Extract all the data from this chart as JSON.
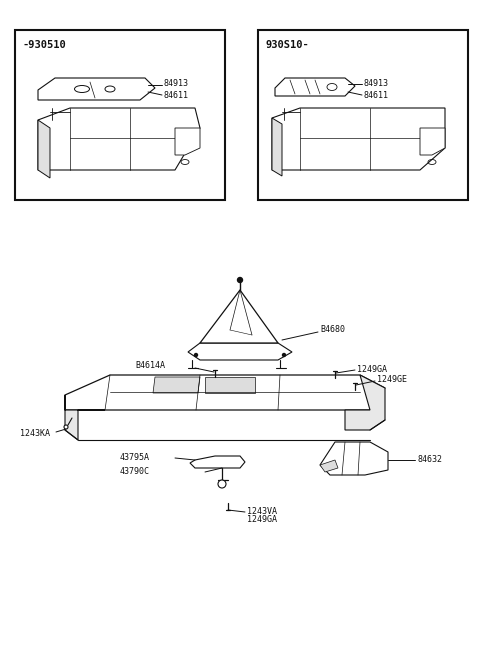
{
  "bg_color": "#ffffff",
  "box1_label": "-930510",
  "box2_label": "930S10-",
  "part_84913": "84913",
  "part_84611": "84611",
  "part_B4680": "B4680",
  "part_84614A": "B4614A",
  "part_1249GA": "1249GA",
  "part_1249GE": "1249GE",
  "part_1243KA": "1243KA",
  "part_43795A": "43795A",
  "part_43790C": "43790C",
  "part_84632": "84632",
  "part_1243VA": "1243VA",
  "lc": "#111111",
  "fc_light": "#e8e8e8",
  "fc_mid": "#cccccc",
  "fc_white": "#ffffff"
}
